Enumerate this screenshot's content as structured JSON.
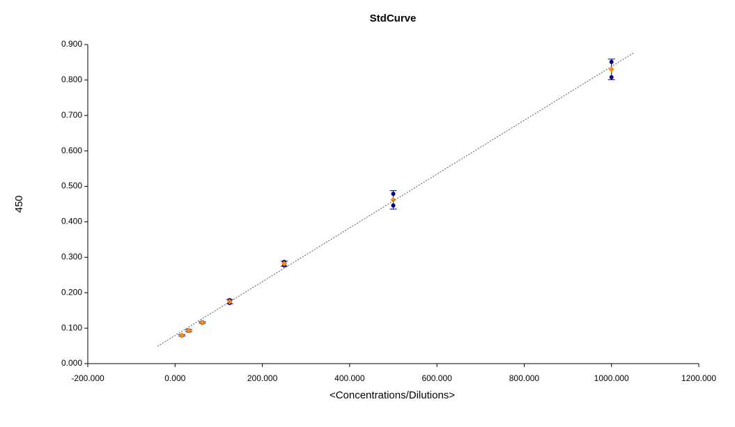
{
  "chart_data": {
    "type": "scatter",
    "title": "StdCurve",
    "x_label": "<Concentrations/Dilutions>",
    "y_label": "450",
    "xlim": [
      -200,
      1200
    ],
    "xticks": [
      {
        "value": -200,
        "label": "-200.000"
      },
      {
        "value": 0,
        "label": "0.000"
      },
      {
        "value": 200,
        "label": "200.000"
      },
      {
        "value": 400,
        "label": "400.000"
      },
      {
        "value": 600,
        "label": "600.000"
      },
      {
        "value": 800,
        "label": "800.000"
      },
      {
        "value": 1000,
        "label": "1000.000"
      },
      {
        "value": 1200,
        "label": "1200.000"
      }
    ],
    "ylim": [
      0,
      0.9
    ],
    "yticks": [
      {
        "value": 0,
        "label": "0.000"
      },
      {
        "value": 0.1,
        "label": "0.100"
      },
      {
        "value": 0.2,
        "label": "0.200"
      },
      {
        "value": 0.3,
        "label": "0.300"
      },
      {
        "value": 0.4,
        "label": "0.400"
      },
      {
        "value": 0.5,
        "label": "0.500"
      },
      {
        "value": 0.6,
        "label": "0.600"
      },
      {
        "value": 0.7,
        "label": "0.700"
      },
      {
        "value": 0.8,
        "label": "0.800"
      },
      {
        "value": 0.9,
        "label": "0.900"
      }
    ],
    "series": [
      {
        "color": "#000080",
        "marker": "circle",
        "x": [
          15.625,
          15.625,
          31.25,
          31.25,
          62.5,
          62.5,
          125,
          125,
          250,
          250,
          500,
          500,
          1000,
          1000
        ],
        "values": [
          0.079,
          0.08,
          0.092,
          0.094,
          0.115,
          0.117,
          0.171,
          0.179,
          0.277,
          0.287,
          0.446,
          0.479,
          0.808,
          0.851
        ]
      },
      {
        "color": "#ff8c00",
        "marker": "diamond",
        "error_color": "#000080",
        "x": [
          15.625,
          31.25,
          62.5,
          125,
          250,
          500,
          1000
        ],
        "values": [
          0.08,
          0.093,
          0.116,
          0.175,
          0.282,
          0.462,
          0.83
        ],
        "errors": [
          0.002,
          0.003,
          0.002,
          0.006,
          0.007,
          0.026,
          0.029
        ]
      },
      {
        "color": "#555555",
        "style": "dotted",
        "x": [
          -40,
          1050
        ],
        "values": [
          0.049,
          0.876
        ]
      }
    ]
  }
}
